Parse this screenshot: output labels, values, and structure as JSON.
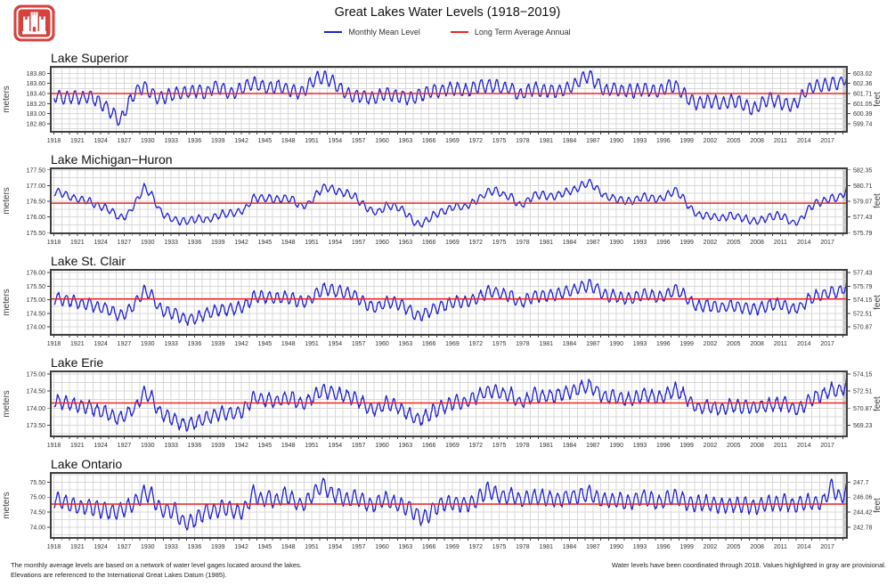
{
  "header": {
    "title": "Great Lakes Water Levels (1918−2019)",
    "logo": {
      "name": "usace-castle-logo",
      "color": "#d6413e"
    }
  },
  "legend": [
    {
      "label": "Monthly Mean Level",
      "color": "#2121cd"
    },
    {
      "label": "Long Term Average Annual",
      "color": "#ef2525"
    }
  ],
  "footer": {
    "left_line1": "The monthly average levels are based on a network of water level gages located around the lakes.",
    "left_line2": "Elevations are referenced to the International Great Lakes Datum (1985).",
    "right_line": "Water levels have been coordinated through 2018. Values highlighted in gray are provisional."
  },
  "x_axis": {
    "start_year": 1918,
    "end": 2019.42,
    "xlim": [
      1917.6,
      2019.5
    ],
    "tick_step_years": 1,
    "label_years": [
      1918,
      1921,
      1924,
      1927,
      1930,
      1933,
      1936,
      1939,
      1942,
      1945,
      1948,
      1951,
      1954,
      1957,
      1960,
      1963,
      1966,
      1969,
      1972,
      1975,
      1978,
      1981,
      1984,
      1987,
      1990,
      1993,
      1996,
      1999,
      2002,
      2005,
      2008,
      2011,
      2014,
      2017
    ]
  },
  "style": {
    "line_color": "#2121cd",
    "average_color": "#ef2525",
    "grid_color": "#d8d8d8",
    "border_color": "#3f3f3f",
    "provisional_color": "#c9c9c9",
    "tick_label_color": "#333333"
  },
  "chart_data": [
    {
      "type": "line",
      "title": "Lake Superior",
      "unit_left": "meters",
      "unit_right": "feet",
      "ylim": [
        182.64,
        183.93
      ],
      "minor_grid_step": 0.1,
      "ytick_values": [
        183.8,
        183.6,
        183.4,
        183.2,
        183.0,
        182.8
      ],
      "ytick_labels_meters": [
        "183.80",
        "183.60",
        "183.40",
        "183.20",
        "183.00",
        "182.80"
      ],
      "ytick_labels_feet": [
        "603.02",
        "602.36",
        "601.71",
        "601.05",
        "600.39",
        "599.74"
      ],
      "long_term_average_m": 183.4,
      "provisional_from_year": 2019.0,
      "series": {
        "name": "Monthly Mean Level",
        "start_year": 1918,
        "seasonal_amplitude_m": 0.12,
        "peak_month": 8,
        "noise_m": 0.025,
        "annual_means_m": [
          183.35,
          183.3,
          183.35,
          183.3,
          183.35,
          183.25,
          183.15,
          183.0,
          182.85,
          183.2,
          183.45,
          183.55,
          183.4,
          183.3,
          183.35,
          183.4,
          183.4,
          183.45,
          183.45,
          183.4,
          183.55,
          183.5,
          183.4,
          183.45,
          183.55,
          183.6,
          183.55,
          183.5,
          183.55,
          183.5,
          183.45,
          183.4,
          183.55,
          183.7,
          183.72,
          183.65,
          183.5,
          183.4,
          183.35,
          183.35,
          183.3,
          183.35,
          183.4,
          183.35,
          183.35,
          183.3,
          183.35,
          183.4,
          183.45,
          183.45,
          183.5,
          183.5,
          183.45,
          183.5,
          183.55,
          183.55,
          183.55,
          183.5,
          183.5,
          183.35,
          183.45,
          183.5,
          183.45,
          183.45,
          183.45,
          183.5,
          183.55,
          183.7,
          183.75,
          183.6,
          183.45,
          183.5,
          183.45,
          183.45,
          183.45,
          183.5,
          183.45,
          183.45,
          183.55,
          183.55,
          183.4,
          183.25,
          183.2,
          183.25,
          183.25,
          183.2,
          183.25,
          183.25,
          183.15,
          183.08,
          183.2,
          183.3,
          183.25,
          183.2,
          183.15,
          183.3,
          183.5,
          183.55,
          183.55,
          183.6,
          183.6,
          183.72
        ]
      }
    },
    {
      "type": "line",
      "title": "Lake Michigan−Huron",
      "unit_left": "meters",
      "unit_right": "feet",
      "ylim": [
        175.48,
        177.55
      ],
      "minor_grid_step": 0.25,
      "ytick_values": [
        177.5,
        177.0,
        176.5,
        176.0,
        175.5
      ],
      "ytick_labels_meters": [
        "177.50",
        "177.00",
        "176.50",
        "176.00",
        "175.50"
      ],
      "ytick_labels_feet": [
        "582.35",
        "580.71",
        "579.07",
        "577.43",
        "575.79"
      ],
      "long_term_average_m": 176.44,
      "provisional_from_year": 2019.0,
      "series": {
        "name": "Monthly Mean Level",
        "start_year": 1918,
        "seasonal_amplitude_m": 0.11,
        "peak_month": 6.5,
        "noise_m": 0.025,
        "annual_means_m": [
          176.8,
          176.7,
          176.6,
          176.55,
          176.5,
          176.35,
          176.3,
          176.15,
          175.95,
          176.1,
          176.5,
          176.95,
          176.7,
          176.2,
          176.0,
          175.9,
          175.85,
          175.9,
          175.95,
          175.9,
          176.0,
          176.1,
          176.1,
          176.15,
          176.25,
          176.6,
          176.6,
          176.6,
          176.55,
          176.6,
          176.55,
          176.35,
          176.4,
          176.7,
          176.95,
          176.9,
          176.8,
          176.75,
          176.65,
          176.4,
          176.2,
          176.15,
          176.35,
          176.35,
          176.25,
          176.0,
          175.75,
          175.85,
          176.05,
          176.15,
          176.25,
          176.35,
          176.3,
          176.45,
          176.6,
          176.8,
          176.85,
          176.7,
          176.65,
          176.35,
          176.5,
          176.7,
          176.7,
          176.65,
          176.7,
          176.8,
          176.85,
          177.0,
          177.1,
          176.9,
          176.65,
          176.6,
          176.55,
          176.5,
          176.55,
          176.65,
          176.6,
          176.55,
          176.7,
          176.85,
          176.6,
          176.25,
          176.05,
          176.05,
          176.0,
          175.95,
          176.05,
          176.0,
          175.95,
          175.85,
          175.9,
          176.0,
          176.05,
          176.0,
          175.8,
          175.9,
          176.25,
          176.45,
          176.5,
          176.6,
          176.6,
          176.9
        ]
      }
    },
    {
      "type": "line",
      "title": "Lake St. Clair",
      "unit_left": "meters",
      "unit_right": "feet",
      "ylim": [
        173.71,
        176.1
      ],
      "minor_grid_step": 0.25,
      "ytick_values": [
        176.0,
        175.5,
        175.0,
        174.5,
        174.0
      ],
      "ytick_labels_meters": [
        "176.00",
        "175.50",
        "175.00",
        "174.50",
        "174.00"
      ],
      "ytick_labels_feet": [
        "577.43",
        "575.79",
        "574.15",
        "572.51",
        "570.87"
      ],
      "long_term_average_m": 175.03,
      "provisional_from_year": 2019.0,
      "series": {
        "name": "Monthly Mean Level",
        "start_year": 1918,
        "seasonal_amplitude_m": 0.2,
        "peak_month": 6.5,
        "noise_m": 0.05,
        "annual_means_m": [
          175.05,
          175.0,
          174.95,
          174.85,
          174.85,
          174.7,
          174.7,
          174.55,
          174.4,
          174.6,
          174.9,
          175.3,
          175.15,
          174.65,
          174.55,
          174.5,
          174.3,
          174.3,
          174.35,
          174.5,
          174.6,
          174.65,
          174.65,
          174.7,
          174.8,
          175.1,
          175.1,
          175.1,
          175.05,
          175.1,
          175.05,
          174.9,
          174.95,
          175.2,
          175.4,
          175.35,
          175.3,
          175.25,
          175.15,
          174.95,
          174.75,
          174.75,
          174.9,
          174.9,
          174.8,
          174.6,
          174.4,
          174.5,
          174.65,
          174.75,
          174.85,
          174.95,
          174.9,
          175.0,
          175.1,
          175.3,
          175.3,
          175.2,
          175.15,
          174.9,
          175.0,
          175.15,
          175.15,
          175.15,
          175.2,
          175.3,
          175.35,
          175.45,
          175.55,
          175.4,
          175.15,
          175.15,
          175.1,
          175.05,
          175.1,
          175.2,
          175.15,
          175.1,
          175.2,
          175.4,
          175.2,
          174.9,
          174.75,
          174.8,
          174.75,
          174.7,
          174.8,
          174.75,
          174.7,
          174.65,
          174.7,
          174.8,
          174.85,
          174.8,
          174.65,
          174.7,
          175.0,
          175.15,
          175.2,
          175.3,
          175.3,
          175.5
        ]
      }
    },
    {
      "type": "line",
      "title": "Lake Erie",
      "unit_left": "meters",
      "unit_right": "feet",
      "ylim": [
        173.17,
        175.08
      ],
      "minor_grid_step": 0.25,
      "ytick_values": [
        175.0,
        174.5,
        174.0,
        173.5
      ],
      "ytick_labels_meters": [
        "175.00",
        "174.50",
        "174.00",
        "173.50"
      ],
      "ytick_labels_feet": [
        "574.15",
        "572.51",
        "570.87",
        "569.23"
      ],
      "long_term_average_m": 174.15,
      "provisional_from_year": 2019.0,
      "series": {
        "name": "Monthly Mean Level",
        "start_year": 1918,
        "seasonal_amplitude_m": 0.18,
        "peak_month": 6,
        "noise_m": 0.05,
        "annual_means_m": [
          174.2,
          174.15,
          174.1,
          174.05,
          174.05,
          173.9,
          173.9,
          173.75,
          173.7,
          173.85,
          174.05,
          174.45,
          174.3,
          173.85,
          173.75,
          173.65,
          173.5,
          173.55,
          173.6,
          173.7,
          173.8,
          173.85,
          173.85,
          173.85,
          174.0,
          174.3,
          174.25,
          174.25,
          174.2,
          174.3,
          174.3,
          174.1,
          174.2,
          174.4,
          174.5,
          174.45,
          174.4,
          174.35,
          174.3,
          174.15,
          173.95,
          174.0,
          174.15,
          174.1,
          173.95,
          173.8,
          173.65,
          173.75,
          173.9,
          174.0,
          174.1,
          174.2,
          174.15,
          174.25,
          174.4,
          174.5,
          174.5,
          174.4,
          174.4,
          174.15,
          174.25,
          174.4,
          174.35,
          174.35,
          174.4,
          174.45,
          174.5,
          174.6,
          174.65,
          174.5,
          174.3,
          174.35,
          174.3,
          174.25,
          174.3,
          174.4,
          174.35,
          174.3,
          174.4,
          174.55,
          174.4,
          174.15,
          174.0,
          174.05,
          174.0,
          173.95,
          174.1,
          174.05,
          174.05,
          174.0,
          174.05,
          174.1,
          174.1,
          174.15,
          174.0,
          174.0,
          174.2,
          174.35,
          174.4,
          174.55,
          174.5,
          174.7
        ]
      }
    },
    {
      "type": "line",
      "title": "Lake Ontario",
      "unit_left": "meters",
      "unit_right": "feet",
      "ylim": [
        73.64,
        75.81
      ],
      "minor_grid_step": 0.25,
      "ytick_values": [
        75.5,
        75.0,
        74.5,
        74.0
      ],
      "ytick_labels_meters": [
        "75.50",
        "75.00",
        "74.50",
        "74.00"
      ],
      "ytick_labels_feet": [
        "247.7",
        "246.06",
        "244.42",
        "242.78"
      ],
      "long_term_average_m": 74.77,
      "provisional_from_year": 2019.0,
      "series": {
        "name": "Monthly Mean Level",
        "start_year": 1918,
        "seasonal_amplitude_m": 0.24,
        "peak_month": 5.5,
        "noise_m": 0.05,
        "annual_means_m": [
          74.9,
          74.8,
          74.7,
          74.65,
          74.7,
          74.6,
          74.55,
          74.5,
          74.55,
          74.7,
          74.85,
          75.15,
          75.05,
          74.6,
          74.55,
          74.55,
          74.15,
          74.15,
          74.35,
          74.55,
          74.5,
          74.65,
          74.6,
          74.5,
          74.6,
          75.15,
          74.9,
          75.0,
          74.85,
          75.1,
          74.95,
          74.7,
          74.9,
          75.2,
          75.4,
          75.1,
          75.05,
          74.9,
          75.0,
          74.9,
          74.7,
          74.85,
          74.95,
          74.8,
          74.7,
          74.65,
          74.35,
          74.3,
          74.6,
          74.75,
          74.8,
          74.8,
          74.75,
          74.8,
          75.0,
          75.25,
          75.1,
          75.0,
          75.05,
          74.9,
          74.95,
          75.0,
          75.0,
          74.95,
          74.9,
          75.0,
          75.0,
          75.05,
          75.15,
          74.95,
          74.9,
          74.9,
          74.9,
          74.8,
          74.9,
          75.0,
          74.9,
          74.8,
          74.95,
          75.05,
          74.9,
          74.75,
          74.8,
          74.8,
          74.75,
          74.7,
          74.75,
          74.75,
          74.75,
          74.65,
          74.75,
          74.8,
          74.75,
          74.85,
          74.7,
          74.8,
          74.85,
          74.8,
          74.85,
          75.4,
          74.95,
          75.25
        ]
      }
    }
  ]
}
